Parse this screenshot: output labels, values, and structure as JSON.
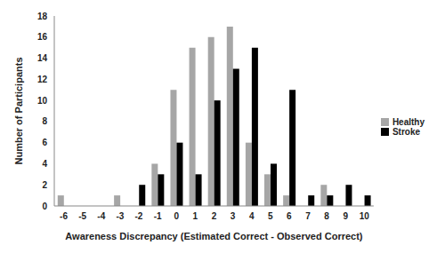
{
  "chart_data": {
    "type": "bar",
    "x_label": "Awareness Discrepancy (Estimated Correct - Observed Correct)",
    "y_label": "Number of Participants",
    "categories": [
      -6,
      -5,
      -4,
      -3,
      -2,
      -1,
      0,
      1,
      2,
      3,
      4,
      5,
      6,
      7,
      8,
      9,
      10
    ],
    "series": [
      {
        "name": "Healthy",
        "color": "#a6a6a6",
        "values": [
          1,
          0,
          0,
          1,
          0,
          4,
          11,
          15,
          16,
          17,
          6,
          3,
          1,
          0,
          2,
          0,
          0
        ]
      },
      {
        "name": "Stroke",
        "color": "#000000",
        "values": [
          0,
          0,
          0,
          0,
          2,
          3,
          6,
          3,
          10,
          13,
          15,
          4,
          11,
          1,
          1,
          2,
          1
        ]
      }
    ],
    "ylim": [
      0,
      18
    ],
    "yticks": [
      0,
      2,
      4,
      6,
      8,
      10,
      12,
      14,
      16,
      18
    ],
    "grid": false,
    "legend": "right"
  }
}
